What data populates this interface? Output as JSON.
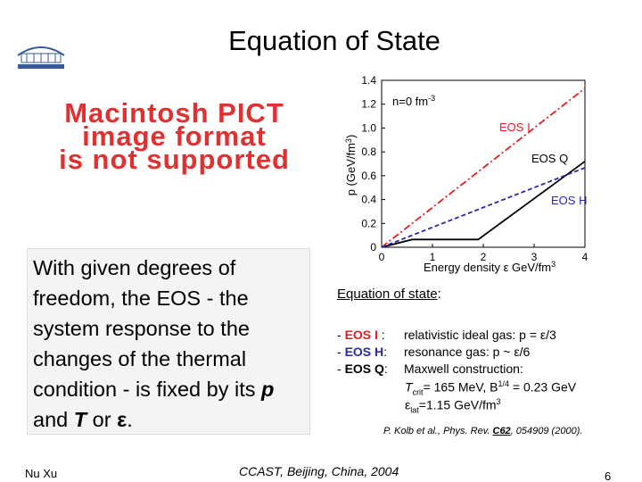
{
  "title": "Equation of State",
  "image_placeholder": [
    "Macintosh PICT",
    "image format",
    "is not supported"
  ],
  "chart_data": {
    "type": "line",
    "y_label": "p (GeV/fm",
    "y_label_sup": "3",
    "y_label_end": ")",
    "x_label": "Energy density ε GeV/fm",
    "x_label_sup": "3",
    "annotation": "n=0 fm",
    "annotation_sup": "-3",
    "xlim": [
      0,
      4
    ],
    "ylim": [
      0,
      1.4
    ],
    "xticks": [
      0,
      1,
      2,
      3,
      4
    ],
    "yticks": [
      0,
      0.2,
      0.4,
      0.6,
      0.8,
      {
        "value": 1,
        "label": "1.0"
      },
      1.2,
      1.4
    ],
    "series": [
      {
        "name": "EOS I",
        "color": "#e02020",
        "x": [
          0,
          4
        ],
        "values": [
          0,
          1.333
        ]
      },
      {
        "name": "EOS Q",
        "color": "#000000",
        "x": [
          0,
          0.6,
          1.9,
          4
        ],
        "values": [
          0,
          0.065,
          0.065,
          0.72
        ]
      },
      {
        "name": "EOS H",
        "color": "#2a2aa8",
        "x": [
          0,
          4
        ],
        "values": [
          0,
          0.667
        ]
      }
    ]
  },
  "text_box": {
    "text": "With given degrees of freedom, the EOS - the system response to the changes of the thermal condition - is fixed by its",
    "p": "p",
    "and": "and",
    "T": "T",
    "or": "or",
    "eps": "ε",
    "end": "."
  },
  "eos": {
    "heading": "Equation of state",
    "colon": ":",
    "rows": [
      {
        "dash": "- ",
        "label": "EOS I",
        "sep": " :",
        "desc": "relativistic ideal gas: p = ε/3"
      },
      {
        "dash": "- ",
        "label": "EOS H",
        "sep": ":",
        "desc": "resonance gas: p ~ ε/6"
      },
      {
        "dash": "- ",
        "label": "EOS Q",
        "sep": ":",
        "desc": "Maxwell construction:"
      }
    ],
    "tcrit": {
      "t": "T",
      "sub": "crit",
      "mid": "= 165 MeV, B",
      "sup": "1/4",
      "end": " = 0.23 GeV"
    },
    "elat": {
      "e": "ε",
      "sub": "lat",
      "mid": "=1.15 GeV/fm",
      "sup": "3"
    },
    "citation": {
      "pre": "P. Kolb et al., Phys. Rev. ",
      "vol": "C62",
      "post": ", 054909 (2000)."
    }
  },
  "footer": {
    "author": "Nu Xu",
    "venue": "CCAST, Beijing, China, 2004",
    "page": "6"
  }
}
